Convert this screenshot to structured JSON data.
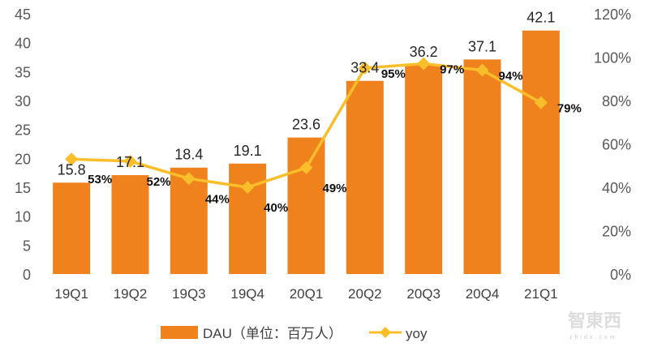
{
  "chart_data": {
    "type": "bar+line",
    "categories": [
      "19Q1",
      "19Q2",
      "19Q3",
      "19Q4",
      "20Q1",
      "20Q2",
      "20Q3",
      "20Q4",
      "21Q1"
    ],
    "series": [
      {
        "name": "DAU（单位：百万人）",
        "type": "bar",
        "axis": "left",
        "color": "#F0821E",
        "values": [
          15.8,
          17.1,
          18.4,
          19.1,
          23.6,
          33.4,
          36.2,
          37.1,
          42.1
        ],
        "labels": [
          "15.8",
          "17.1",
          "18.4",
          "19.1",
          "23.6",
          "33.4",
          "36.2",
          "37.1",
          "42.1"
        ]
      },
      {
        "name": "yoy",
        "type": "line",
        "axis": "right",
        "color": "#F9BE2A",
        "marker": "diamond",
        "values": [
          53,
          52,
          44,
          40,
          49,
          95,
          97,
          94,
          79
        ],
        "labels": [
          "53%",
          "52%",
          "44%",
          "40%",
          "49%",
          "95%",
          "97%",
          "94%",
          "79%"
        ]
      }
    ],
    "left_axis": {
      "ylim": [
        0,
        45
      ],
      "ticks": [
        "0",
        "5",
        "10",
        "15",
        "20",
        "25",
        "30",
        "35",
        "40",
        "45"
      ]
    },
    "right_axis": {
      "ylim": [
        0,
        120
      ],
      "ticks": [
        "0%",
        "20%",
        "40%",
        "60%",
        "80%",
        "100%",
        "120%"
      ]
    },
    "grid": false,
    "legend": {
      "position": "bottom",
      "entries": [
        "DAU（单位：百万人）",
        "yoy"
      ]
    }
  },
  "watermark": {
    "text": "智东西",
    "sub": "zhidx.com"
  }
}
